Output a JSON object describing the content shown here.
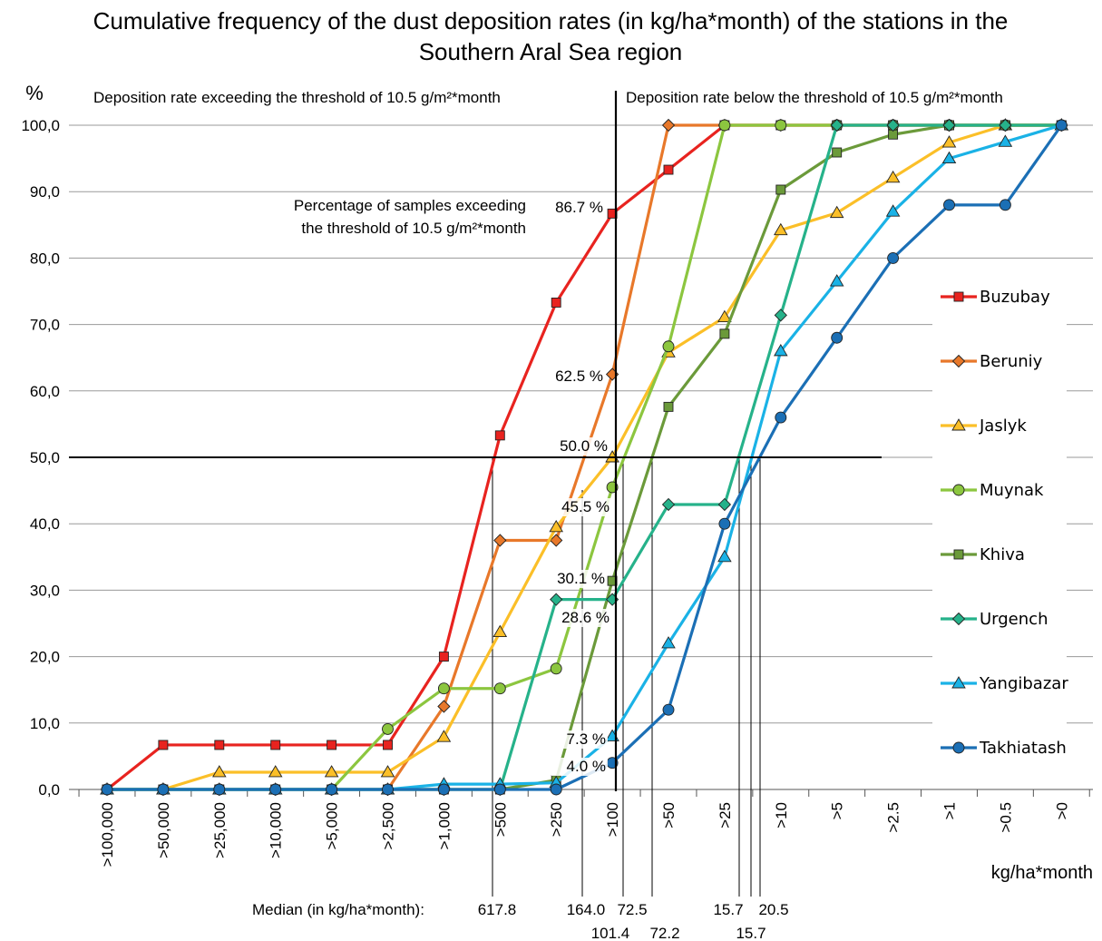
{
  "chart_data": {
    "type": "line",
    "title_line1": "Cumulative frequency of the dust deposition rates (in kg/ha*month) of the stations in the",
    "title_line2": "Southern Aral Sea region",
    "ylabel": "%",
    "xlabel": "kg/ha*month",
    "ylim": [
      0,
      100
    ],
    "grid": true,
    "legend_position": "right",
    "y_ticks": [
      "0,0",
      "10,0",
      "20,0",
      "30,0",
      "40,0",
      "50,0",
      "60,0",
      "70,0",
      "80,0",
      "90,0",
      "100,0"
    ],
    "categories": [
      ">100,000",
      ">50,000",
      ">25,000",
      ">10,000",
      ">5,000",
      ">2,500",
      ">1,000",
      ">500",
      ">250",
      ">100",
      ">50",
      ">25",
      ">10",
      ">5",
      ">2.5",
      ">1",
      ">0.5",
      ">0"
    ],
    "threshold_left_label": "Deposition rate exceeding the threshold of 10.5 g/m²*month",
    "threshold_right_label": "Deposition rate below the threshold of 10.5 g/m²*month",
    "annotation_line1": "Percentage of samples exceeding",
    "annotation_line2": "the threshold of 10.5 g/m²*month",
    "percent_labels": [
      "86.7 %",
      "62.5 %",
      "50.0 %",
      "45.5 %",
      "30.1 %",
      "28.6 %",
      "7.3 %",
      "4.0 %"
    ],
    "median_title": "Median (in kg/ha*month):",
    "median_labels": [
      "617.8",
      "164.0",
      "72.5",
      "101.4",
      "72.2",
      "15.7",
      "20.5",
      "15.7"
    ],
    "series": [
      {
        "name": "Buzubay",
        "color": "#e8231f",
        "marker": "square",
        "points": [
          [
            0,
            0
          ],
          [
            1,
            6.7
          ],
          [
            2,
            6.7
          ],
          [
            3,
            6.7
          ],
          [
            4,
            6.7
          ],
          [
            5,
            6.7
          ],
          [
            6,
            20
          ],
          [
            7,
            53.3
          ],
          [
            8,
            73.3
          ],
          [
            9,
            86.7
          ],
          [
            10,
            93.3
          ],
          [
            11,
            100
          ],
          [
            12,
            100
          ],
          [
            13,
            100
          ],
          [
            14,
            100
          ],
          [
            15,
            100
          ],
          [
            16,
            100
          ],
          [
            17,
            100
          ]
        ]
      },
      {
        "name": "Beruniy",
        "color": "#e8782a",
        "marker": "diamond",
        "points": [
          [
            0,
            0
          ],
          [
            1,
            0
          ],
          [
            2,
            0
          ],
          [
            3,
            0
          ],
          [
            4,
            0
          ],
          [
            5,
            0
          ],
          [
            6,
            12.5
          ],
          [
            7,
            37.5
          ],
          [
            8,
            37.5
          ],
          [
            9,
            62.5
          ],
          [
            10,
            100
          ],
          [
            11,
            100
          ],
          [
            12,
            100
          ],
          [
            13,
            100
          ],
          [
            14,
            100
          ],
          [
            15,
            100
          ],
          [
            16,
            100
          ],
          [
            17,
            100
          ]
        ]
      },
      {
        "name": "Jaslyk",
        "color": "#fbbf28",
        "marker": "triangle",
        "points": [
          [
            0,
            0
          ],
          [
            1,
            0
          ],
          [
            2,
            2.6
          ],
          [
            3,
            2.6
          ],
          [
            4,
            2.6
          ],
          [
            5,
            2.6
          ],
          [
            6,
            7.9
          ],
          [
            7,
            23.7
          ],
          [
            8,
            39.5
          ],
          [
            9,
            50
          ],
          [
            10,
            65.8
          ],
          [
            11,
            71.1
          ],
          [
            12,
            84.2
          ],
          [
            13,
            86.8
          ],
          [
            14,
            92.1
          ],
          [
            15,
            97.4
          ],
          [
            16,
            100
          ],
          [
            17,
            100
          ]
        ]
      },
      {
        "name": "Muynak",
        "color": "#8cc63f",
        "marker": "circle",
        "points": [
          [
            0,
            0
          ],
          [
            1,
            0
          ],
          [
            2,
            0
          ],
          [
            3,
            0
          ],
          [
            4,
            0
          ],
          [
            5,
            9.1
          ],
          [
            6,
            15.2
          ],
          [
            7,
            15.2
          ],
          [
            8,
            18.2
          ],
          [
            9,
            45.5
          ],
          [
            10,
            66.7
          ],
          [
            11,
            100
          ],
          [
            12,
            100
          ],
          [
            13,
            100
          ],
          [
            14,
            100
          ],
          [
            15,
            100
          ],
          [
            16,
            100
          ],
          [
            17,
            100
          ]
        ]
      },
      {
        "name": "Khiva",
        "color": "#6b9a3a",
        "marker": "square",
        "points": [
          [
            0,
            0
          ],
          [
            1,
            0
          ],
          [
            2,
            0
          ],
          [
            3,
            0
          ],
          [
            4,
            0
          ],
          [
            5,
            0
          ],
          [
            6,
            0
          ],
          [
            7,
            0
          ],
          [
            8,
            1.4
          ],
          [
            9,
            31.4
          ],
          [
            10,
            57.6
          ],
          [
            11,
            68.6
          ],
          [
            12,
            90.3
          ],
          [
            13,
            95.9
          ],
          [
            14,
            98.6
          ],
          [
            15,
            100
          ],
          [
            16,
            100
          ],
          [
            17,
            100
          ]
        ]
      },
      {
        "name": "Urgench",
        "color": "#26b28a",
        "marker": "diamond",
        "points": [
          [
            0,
            0
          ],
          [
            1,
            0
          ],
          [
            2,
            0
          ],
          [
            3,
            0
          ],
          [
            4,
            0
          ],
          [
            5,
            0
          ],
          [
            6,
            0
          ],
          [
            7,
            0
          ],
          [
            8,
            28.6
          ],
          [
            9,
            28.6
          ],
          [
            10,
            42.9
          ],
          [
            11,
            42.9
          ],
          [
            12,
            71.4
          ],
          [
            13,
            100
          ],
          [
            14,
            100
          ],
          [
            15,
            100
          ],
          [
            16,
            100
          ],
          [
            17,
            100
          ]
        ]
      },
      {
        "name": "Yangibazar",
        "color": "#1ab2e6",
        "marker": "triangle",
        "points": [
          [
            0,
            0
          ],
          [
            1,
            0
          ],
          [
            2,
            0
          ],
          [
            3,
            0
          ],
          [
            4,
            0
          ],
          [
            5,
            0
          ],
          [
            6,
            0.8
          ],
          [
            7,
            0.8
          ],
          [
            8,
            1
          ],
          [
            9,
            8
          ],
          [
            10,
            22
          ],
          [
            11,
            35
          ],
          [
            12,
            66
          ],
          [
            13,
            76.5
          ],
          [
            14,
            87
          ],
          [
            15,
            95
          ],
          [
            16,
            97.5
          ],
          [
            17,
            100
          ]
        ]
      },
      {
        "name": "Takhiatash",
        "color": "#1b6fb5",
        "marker": "circle",
        "points": [
          [
            0,
            0
          ],
          [
            1,
            0
          ],
          [
            2,
            0
          ],
          [
            3,
            0
          ],
          [
            4,
            0
          ],
          [
            5,
            0
          ],
          [
            6,
            0
          ],
          [
            7,
            0
          ],
          [
            8,
            0
          ],
          [
            9,
            4
          ],
          [
            10,
            12
          ],
          [
            11,
            40
          ],
          [
            12,
            56
          ],
          [
            13,
            68
          ],
          [
            14,
            80
          ],
          [
            15,
            88
          ],
          [
            16,
            88
          ],
          [
            17,
            100
          ]
        ]
      }
    ]
  }
}
